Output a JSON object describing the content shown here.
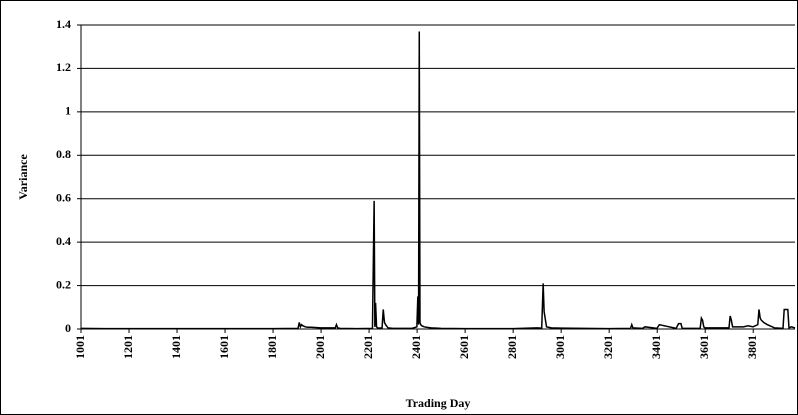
{
  "chart_data": {
    "type": "line",
    "x_label": "Trading Day",
    "y_label": "Variance",
    "x": [
      1001,
      1100,
      1500,
      1800,
      1905,
      1910,
      1915,
      1920,
      1925,
      1935,
      1945,
      1960,
      2000,
      2060,
      2065,
      2070,
      2080,
      2150,
      2215,
      2222,
      2225,
      2228,
      2232,
      2236,
      2240,
      2255,
      2260,
      2265,
      2270,
      2280,
      2300,
      2380,
      2400,
      2404,
      2407,
      2410,
      2413,
      2416,
      2420,
      2430,
      2440,
      2460,
      2500,
      2600,
      2800,
      2900,
      2920,
      2926,
      2930,
      2940,
      2960,
      3000,
      3200,
      3290,
      3295,
      3300,
      3340,
      3350,
      3400,
      3410,
      3480,
      3490,
      3500,
      3505,
      3580,
      3585,
      3590,
      3595,
      3600,
      3700,
      3705,
      3710,
      3715,
      3760,
      3780,
      3800,
      3820,
      3825,
      3830,
      3835,
      3845,
      3860,
      3880,
      3890,
      3925,
      3930,
      3945,
      3950,
      3960,
      3975
    ],
    "values": [
      0.003,
      0.002,
      0.002,
      0.002,
      0.003,
      0.03,
      0.01,
      0.02,
      0.015,
      0.01,
      0.008,
      0.008,
      0.005,
      0.005,
      0.02,
      0.005,
      0.003,
      0.002,
      0.003,
      0.59,
      0.01,
      0.12,
      0.01,
      0.005,
      0.004,
      0.005,
      0.09,
      0.03,
      0.02,
      0.005,
      0.003,
      0.003,
      0.01,
      0.15,
      0.02,
      1.37,
      0.03,
      0.02,
      0.015,
      0.01,
      0.008,
      0.005,
      0.003,
      0.002,
      0.002,
      0.005,
      0.004,
      0.21,
      0.08,
      0.01,
      0.005,
      0.004,
      0.002,
      0.003,
      0.02,
      0.005,
      0.003,
      0.01,
      0.003,
      0.02,
      0.003,
      0.025,
      0.025,
      0.003,
      0.003,
      0.05,
      0.04,
      0.01,
      0.005,
      0.005,
      0.06,
      0.04,
      0.01,
      0.01,
      0.015,
      0.01,
      0.02,
      0.09,
      0.05,
      0.04,
      0.03,
      0.02,
      0.01,
      0.005,
      0.003,
      0.09,
      0.09,
      0.005,
      0.01,
      0.005
    ],
    "color": "#000000",
    "xlim": [
      1001,
      3975
    ],
    "xticks": [
      1001,
      1201,
      1401,
      1601,
      1801,
      2001,
      2201,
      2401,
      2601,
      2801,
      3001,
      3201,
      3401,
      3601,
      3801
    ],
    "ylim": [
      0,
      1.4
    ],
    "yticks": [
      0,
      0.2,
      0.4,
      0.6,
      0.8,
      1,
      1.2,
      1.4
    ],
    "grid": true
  }
}
